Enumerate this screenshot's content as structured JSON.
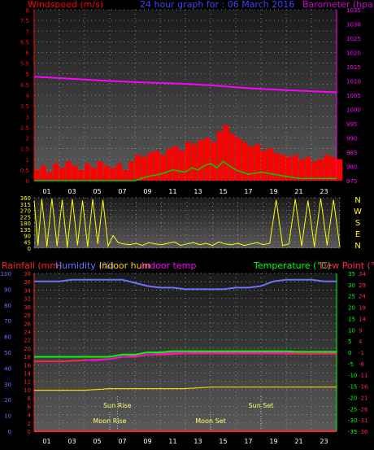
{
  "colors": {
    "wind": "#ff0000",
    "gust": "#00cc00",
    "baro": "#ff00ff",
    "baro_label": "#d000d0",
    "title": "#4040ff",
    "dir": "#ffff00",
    "compass": "#ffff00",
    "rain": "#ff2020",
    "humidity": "#6f6fff",
    "indoor_hum": "#ffcc00",
    "indoor_temp": "#ff00ff",
    "temperature": "#00ff00",
    "dewpoint": "#ff2060",
    "tick": "#ffffff",
    "grid": "#9a9a9a"
  },
  "chart_data": [
    {
      "type": "bar",
      "title": "24 hour graph for : 06 March 2016",
      "left_axis_label": "Windspeed (m/s)",
      "right_axis_label": "Barometer (hpa)",
      "x_ticks": [
        "01",
        "03",
        "05",
        "07",
        "09",
        "11",
        "13",
        "15",
        "17",
        "19",
        "21",
        "23"
      ],
      "ylim_left": [
        0,
        8
      ],
      "y_ticks_left": [
        "0",
        "0.5",
        "1",
        "1.5",
        "2",
        "2.5",
        "3",
        "3.5",
        "4",
        "4.5",
        "5",
        "5.5",
        "6",
        "6.5",
        "7",
        "7.5",
        "8"
      ],
      "ylim_right": [
        975,
        1035
      ],
      "y_ticks_right": [
        "975",
        "980",
        "985",
        "990",
        "995",
        "1000",
        "1005",
        "1010",
        "1015",
        "1020",
        "1025",
        "1030",
        "1035"
      ],
      "series": [
        {
          "name": "Windspeed",
          "hours": [
            0,
            0.5,
            1,
            1.5,
            2,
            2.5,
            3,
            3.5,
            4,
            4.5,
            5,
            5.5,
            6,
            6.5,
            7,
            7.5,
            8,
            8.5,
            9,
            9.5,
            10,
            10.5,
            11,
            11.5,
            12,
            12.5,
            13,
            13.5,
            14,
            14.5,
            15,
            15.5,
            16,
            16.5,
            17,
            17.5,
            18,
            18.5,
            19,
            19.5,
            20,
            20.5,
            21,
            21.5,
            22,
            22.5,
            23,
            23.5,
            24
          ],
          "values": [
            0.5,
            0.7,
            0.4,
            0.8,
            0.6,
            0.9,
            0.7,
            0.5,
            0.8,
            0.6,
            0.9,
            0.7,
            0.6,
            0.8,
            0.5,
            0.9,
            1.2,
            1.1,
            1.3,
            1.4,
            1.2,
            1.5,
            1.6,
            1.4,
            1.8,
            1.7,
            1.9,
            2.0,
            1.8,
            2.3,
            2.6,
            2.2,
            2.0,
            1.8,
            1.6,
            1.7,
            1.4,
            1.5,
            1.3,
            1.2,
            1.1,
            1.2,
            1.0,
            1.1,
            0.9,
            1.0,
            1.2,
            1.1,
            1.0
          ]
        },
        {
          "name": "Gust",
          "hours": [
            0,
            1,
            2,
            3,
            4,
            5,
            6,
            7,
            8,
            9,
            10,
            11,
            12,
            12.5,
            13,
            13.5,
            14,
            14.5,
            15,
            15.5,
            16,
            16.5,
            17,
            18,
            19,
            20,
            21,
            22,
            23,
            24
          ],
          "values": [
            0,
            0,
            0,
            0,
            0,
            0,
            0,
            0,
            0,
            0.2,
            0.3,
            0.5,
            0.4,
            0.6,
            0.5,
            0.7,
            0.8,
            0.6,
            0.9,
            0.7,
            0.5,
            0.4,
            0.3,
            0.4,
            0.3,
            0.2,
            0.1,
            0.1,
            0.1,
            0.1
          ]
        },
        {
          "name": "Barometer",
          "hours": [
            0,
            2,
            4,
            6,
            8,
            10,
            12,
            14,
            16,
            18,
            20,
            22,
            24
          ],
          "values": [
            1011.5,
            1011,
            1010.5,
            1010,
            1009.6,
            1009.3,
            1009,
            1008.5,
            1007.8,
            1007.2,
            1006.8,
            1006.4,
            1006
          ]
        }
      ]
    },
    {
      "type": "scatter",
      "y_ticks": [
        "0",
        "45",
        "90",
        "135",
        "180",
        "225",
        "270",
        "315",
        "360"
      ],
      "ylim": [
        0,
        360
      ],
      "compass": [
        "N",
        "W",
        "S",
        "E",
        "N"
      ],
      "x_ticks": [
        "01",
        "03",
        "05",
        "07",
        "09",
        "11",
        "13",
        "15",
        "17",
        "19",
        "21",
        "23"
      ],
      "series": [
        {
          "name": "Wind direction",
          "hours": [
            0,
            0.3,
            0.6,
            1,
            1.4,
            1.8,
            2.2,
            2.6,
            3,
            3.4,
            3.8,
            4.2,
            4.6,
            5,
            5.4,
            5.8,
            6.2,
            6.6,
            7,
            7.5,
            8,
            8.5,
            9,
            9.5,
            10,
            10.5,
            11,
            11.5,
            12,
            12.5,
            13,
            13.5,
            14,
            14.5,
            15,
            15.5,
            16,
            16.5,
            17,
            17.5,
            18,
            18.5,
            19,
            19.5,
            20,
            20.5,
            21,
            21.5,
            22,
            22.5,
            23,
            23.5,
            24
          ],
          "values": [
            340,
            20,
            350,
            10,
            355,
            15,
            345,
            5,
            350,
            20,
            340,
            10,
            350,
            30,
            345,
            15,
            90,
            40,
            30,
            25,
            35,
            20,
            40,
            30,
            25,
            35,
            45,
            20,
            30,
            40,
            25,
            35,
            20,
            45,
            30,
            25,
            35,
            20,
            30,
            40,
            25,
            35,
            345,
            20,
            30,
            350,
            15,
            340,
            10,
            355,
            20,
            345,
            10
          ]
        }
      ]
    },
    {
      "type": "line",
      "labels": {
        "rainfall": "Rainfall (mm)",
        "humidity": "Humidity (%)",
        "indoor_hum": "Indoor hum",
        "indoor_temp": "Indoor temp",
        "temperature": "Temperature (°C)",
        "dewpoint": "Dew Point (°C)"
      },
      "x_ticks": [
        "01",
        "03",
        "05",
        "07",
        "09",
        "11",
        "13",
        "15",
        "17",
        "19",
        "21",
        "23"
      ],
      "ylim_humidity": [
        0,
        100
      ],
      "y_ticks_humidity": [
        "0",
        "10",
        "20",
        "30",
        "40",
        "50",
        "60",
        "70",
        "80",
        "90",
        "100"
      ],
      "ylim_rain": [
        0,
        38
      ],
      "y_ticks_rain": [
        "0",
        "2",
        "4",
        "6",
        "8",
        "10",
        "12",
        "14",
        "16",
        "18",
        "20",
        "22",
        "24",
        "26",
        "28",
        "30",
        "32",
        "34",
        "36",
        "38"
      ],
      "ylim_temp": [
        -35,
        35
      ],
      "y_ticks_temp": [
        "-35",
        "-30",
        "-25",
        "-20",
        "-15",
        "-10",
        "-5",
        "0",
        "5",
        "10",
        "15",
        "20",
        "25",
        "30",
        "35"
      ],
      "y_ticks_dew": [
        "-36",
        "-31",
        "-26",
        "-21",
        "-16",
        "-11",
        "-6",
        "-1",
        "4",
        "9",
        "14",
        "19",
        "24",
        "29",
        "34"
      ],
      "events": [
        {
          "label": "Sun Rise",
          "hour": 6.6
        },
        {
          "label": "Moon Rise",
          "hour": 6.0
        },
        {
          "label": "Moon Set",
          "hour": 14.0
        },
        {
          "label": "Sun Set",
          "hour": 18.0
        }
      ],
      "series": [
        {
          "name": "Humidity",
          "hours": [
            0,
            1,
            2,
            3,
            4,
            5,
            6,
            7,
            8,
            9,
            10,
            11,
            12,
            13,
            14,
            15,
            16,
            17,
            18,
            19,
            20,
            21,
            22,
            23,
            24
          ],
          "values": [
            95,
            95,
            95,
            96,
            96,
            96,
            96,
            96,
            94,
            92,
            91,
            91,
            90,
            90,
            90,
            90,
            91,
            91,
            92,
            95,
            96,
            96,
            96,
            95,
            95
          ]
        },
        {
          "name": "Temperature",
          "hours": [
            0,
            2,
            4,
            6,
            7,
            8,
            9,
            10,
            11,
            12,
            13,
            14,
            15,
            16,
            17,
            18,
            19,
            20,
            21,
            22,
            23,
            24
          ],
          "values": [
            -2,
            -2,
            -2,
            -2,
            -1,
            -1,
            0,
            0,
            0.5,
            0.5,
            0.5,
            0.5,
            0.5,
            0.5,
            0.5,
            0.5,
            0.5,
            0.5,
            0.2,
            0.2,
            0.2,
            0.2
          ]
        },
        {
          "name": "Dew Point",
          "hours": [
            0,
            2,
            4,
            6,
            7,
            8,
            9,
            10,
            11,
            12,
            13,
            14,
            15,
            16,
            17,
            18,
            19,
            20,
            21,
            22,
            23,
            24
          ],
          "values": [
            -4,
            -4,
            -3.5,
            -3,
            -2,
            -2,
            -1,
            -1,
            -0.8,
            -0.5,
            -0.5,
            -0.5,
            -0.5,
            -0.5,
            -0.5,
            -0.5,
            -0.5,
            -0.5,
            -0.6,
            -0.6,
            -0.6,
            -0.6
          ]
        },
        {
          "name": "Indoor temp",
          "hours": [
            4,
            5,
            6,
            7,
            8,
            9,
            10,
            11,
            12,
            13,
            14,
            15,
            16,
            17,
            18,
            19,
            20,
            21,
            22,
            23,
            24
          ],
          "values": [
            -3.5,
            -3.5,
            -3,
            -2,
            -1.5,
            -1,
            -0.5,
            -0.2,
            -0.2,
            0,
            0,
            0,
            0,
            0,
            0,
            0,
            0,
            0,
            0,
            0,
            0
          ]
        },
        {
          "name": "Indoor hum",
          "hours": [
            0,
            2,
            4,
            6,
            8,
            10,
            12,
            14,
            16,
            18,
            20,
            22,
            24
          ],
          "values": [
            26,
            26,
            26,
            27,
            27,
            27,
            27,
            28,
            28,
            28,
            28,
            28,
            28
          ]
        },
        {
          "name": "Rainfall",
          "hours": [
            0,
            24
          ],
          "values": [
            0,
            0
          ]
        }
      ]
    }
  ]
}
